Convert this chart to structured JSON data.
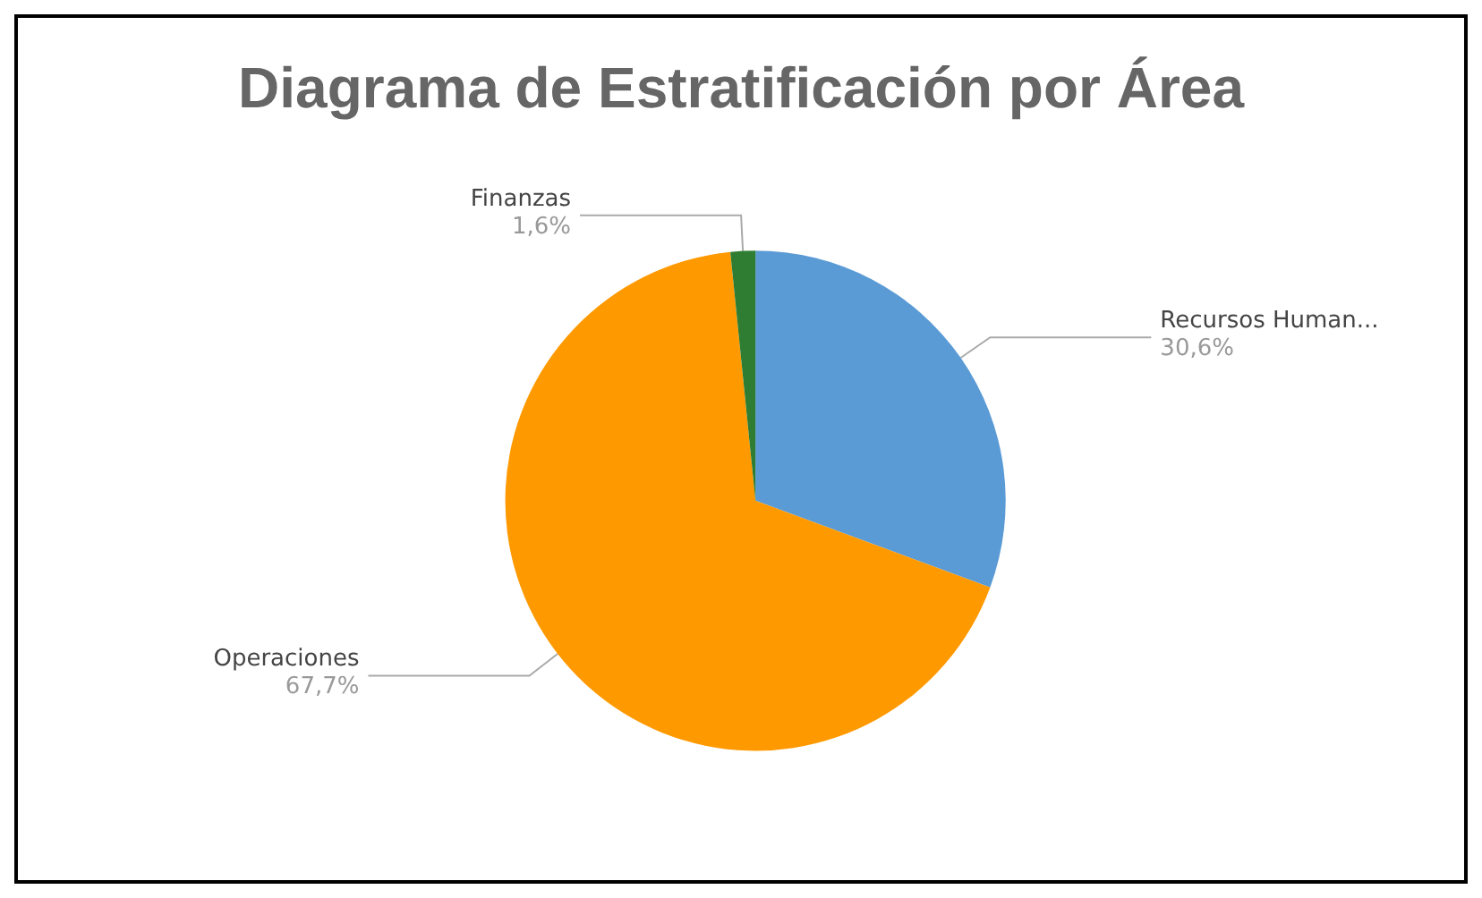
{
  "chart_data": {
    "type": "pie",
    "title": "Diagrama de Estratificación por Área",
    "categories": [
      "Recursos Human...",
      "Operaciones",
      "Finanzas"
    ],
    "values": [
      30.6,
      67.7,
      1.6
    ],
    "colors": [
      "#5b9bd5",
      "#ff9900",
      "#2e7d32"
    ],
    "value_labels": [
      "30,6%",
      "67,7%",
      "1,6%"
    ],
    "legend": false
  }
}
